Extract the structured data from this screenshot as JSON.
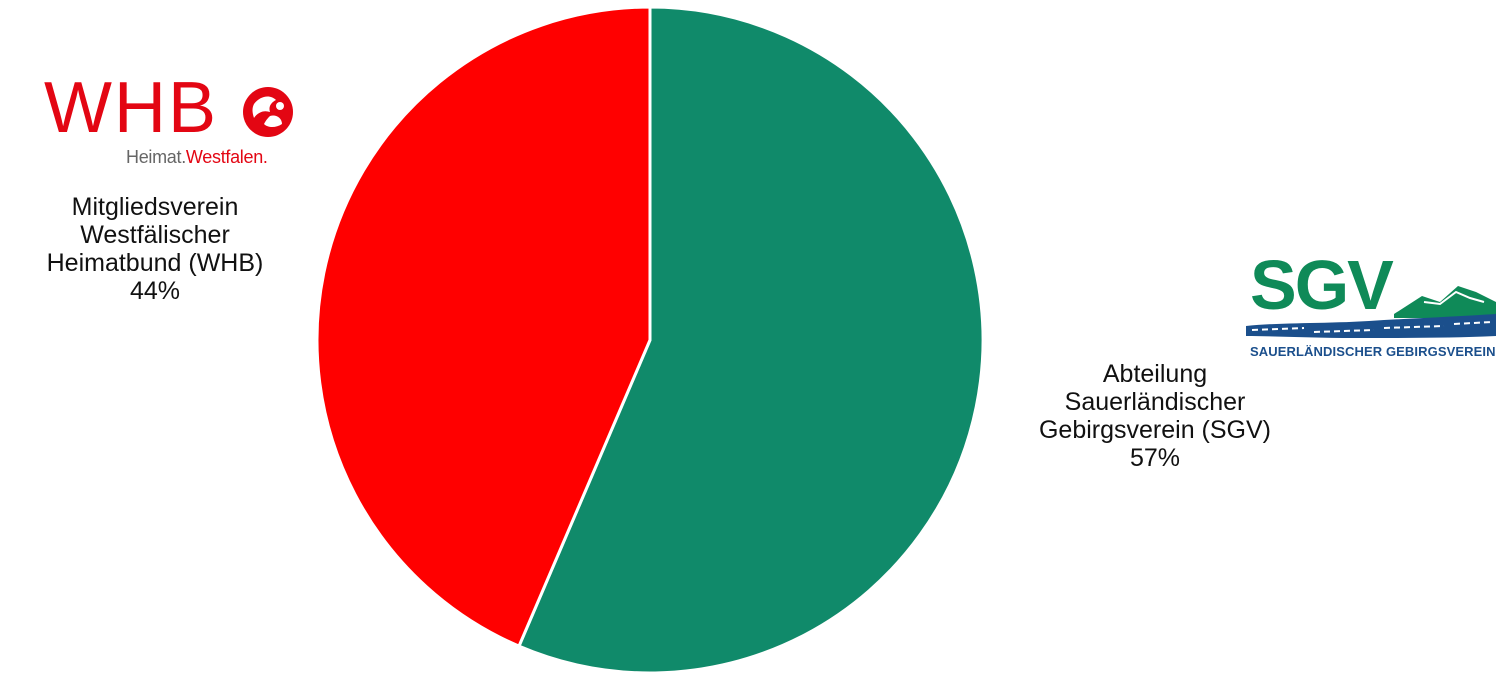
{
  "chart_data": {
    "type": "pie",
    "title": "",
    "slices": [
      {
        "label_lines": [
          "Abteilung",
          "Sauerländischer",
          "Gebirgsverein (SGV)"
        ],
        "value": 57,
        "value_label": "57%",
        "color": "#108a6a"
      },
      {
        "label_lines": [
          "Mitgliedsverein",
          "Westfälischer",
          "Heimatbund (WHB)"
        ],
        "value": 44,
        "value_label": "44%",
        "color": "#ff0000"
      }
    ],
    "start_angle": "12 o'clock",
    "direction": "clockwise",
    "legend": "none"
  },
  "logos": {
    "whb": {
      "wordmark": "WHB",
      "tagline_part1": "Heimat.",
      "tagline_part2": "Westfalen.",
      "color": "#e30613",
      "icon": "whb-emblem-icon"
    },
    "sgv": {
      "wordmark": "SGV",
      "tagline": "SAUERLÄNDISCHER GEBIRGSVEREIN",
      "color": "#0f8a58",
      "tagline_color": "#1b4f8c",
      "icon": "mountain-icon"
    }
  }
}
